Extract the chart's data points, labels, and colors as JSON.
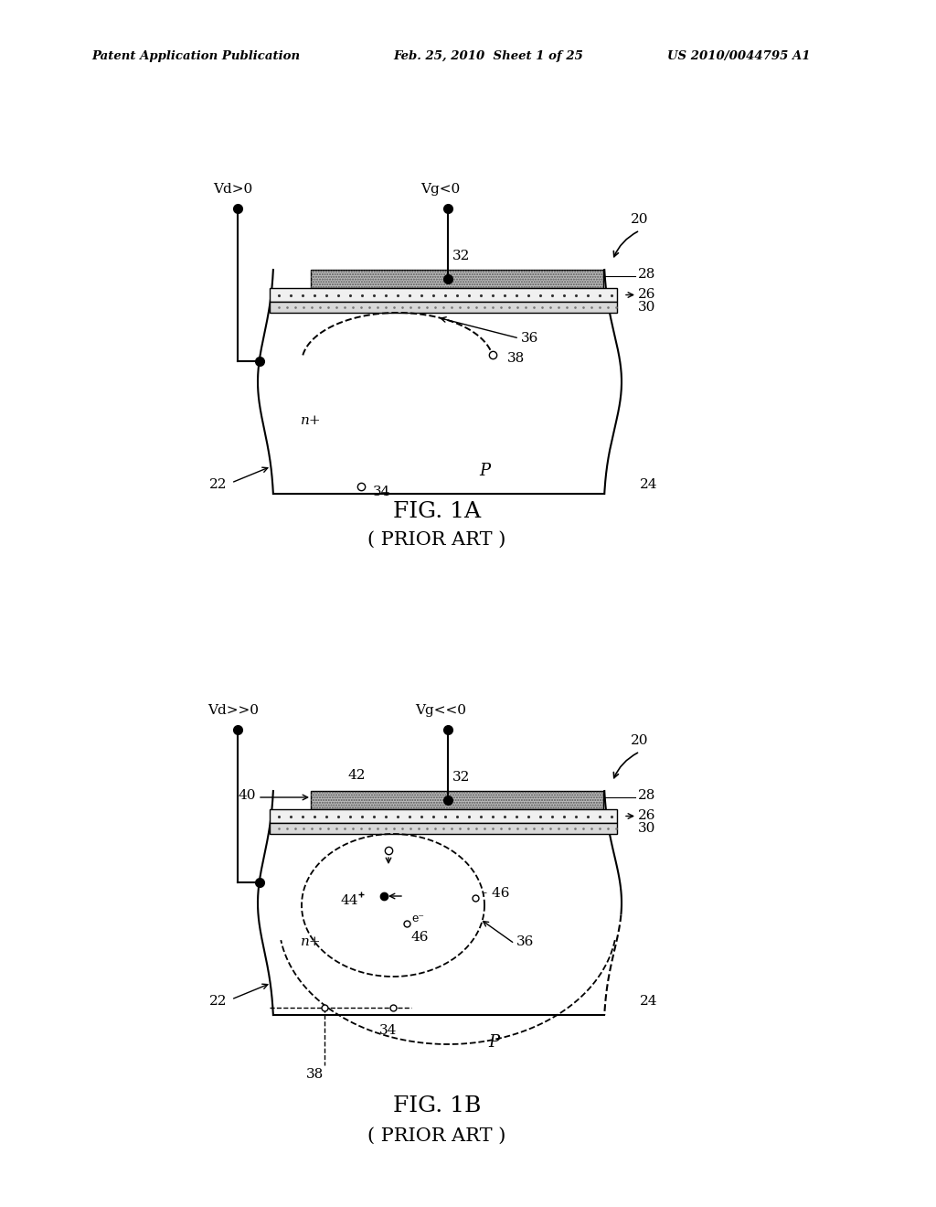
{
  "title_header_left": "Patent Application Publication",
  "title_header_mid": "Feb. 25, 2010  Sheet 1 of 25",
  "title_header_right": "US 2010/0044795 A1",
  "fig1a_title": "FIG. 1A",
  "fig1a_subtitle": "( PRIOR ART )",
  "fig1b_title": "FIG. 1B",
  "fig1b_subtitle": "( PRIOR ART )",
  "bg_color": "#ffffff",
  "line_color": "#000000"
}
